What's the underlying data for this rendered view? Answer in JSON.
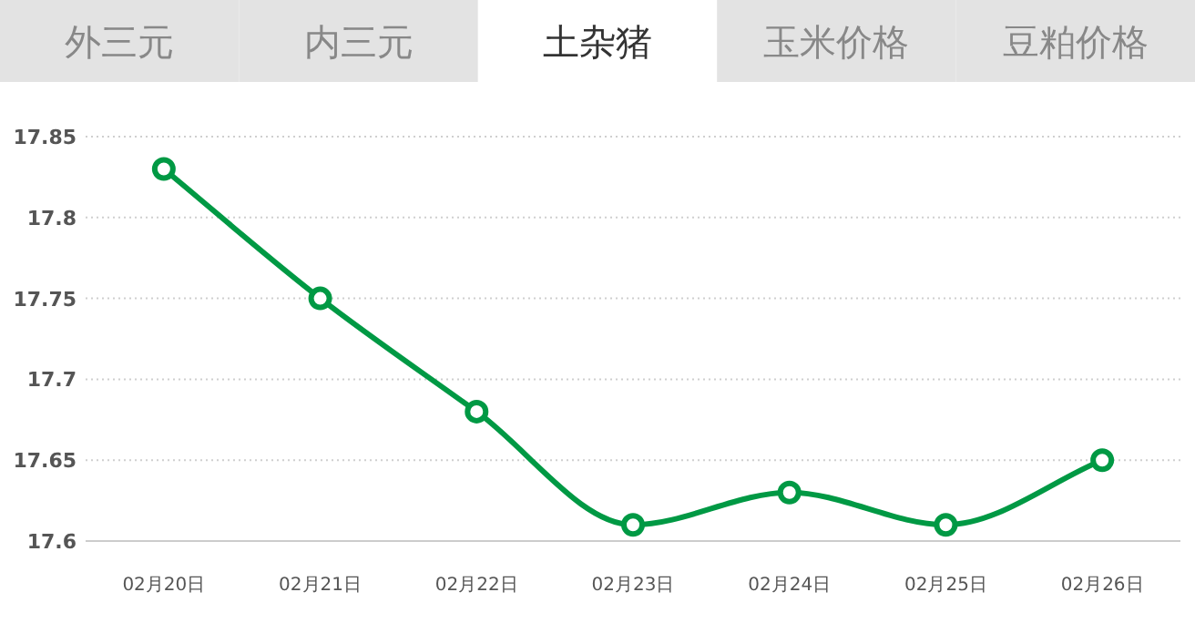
{
  "chart_data": {
    "type": "line",
    "annotations": [
      "外三元",
      "内三元",
      "土杂猪",
      "玉米价格",
      "豆粕价格"
    ],
    "categories": [
      "02月20日",
      "02月21日",
      "02月22日",
      "02月23日",
      "02月24日",
      "02月25日",
      "02月26日"
    ],
    "series": [
      {
        "color": "#009944",
        "values": [
          17.83,
          17.75,
          17.68,
          17.61,
          17.63,
          17.61,
          17.65
        ]
      }
    ],
    "ylim": [
      17.6,
      17.85
    ],
    "yticks": [
      17.6,
      17.65,
      17.7,
      17.75,
      17.8,
      17.85
    ],
    "grid": "y",
    "marker": "circle",
    "line_style": "solid"
  }
}
